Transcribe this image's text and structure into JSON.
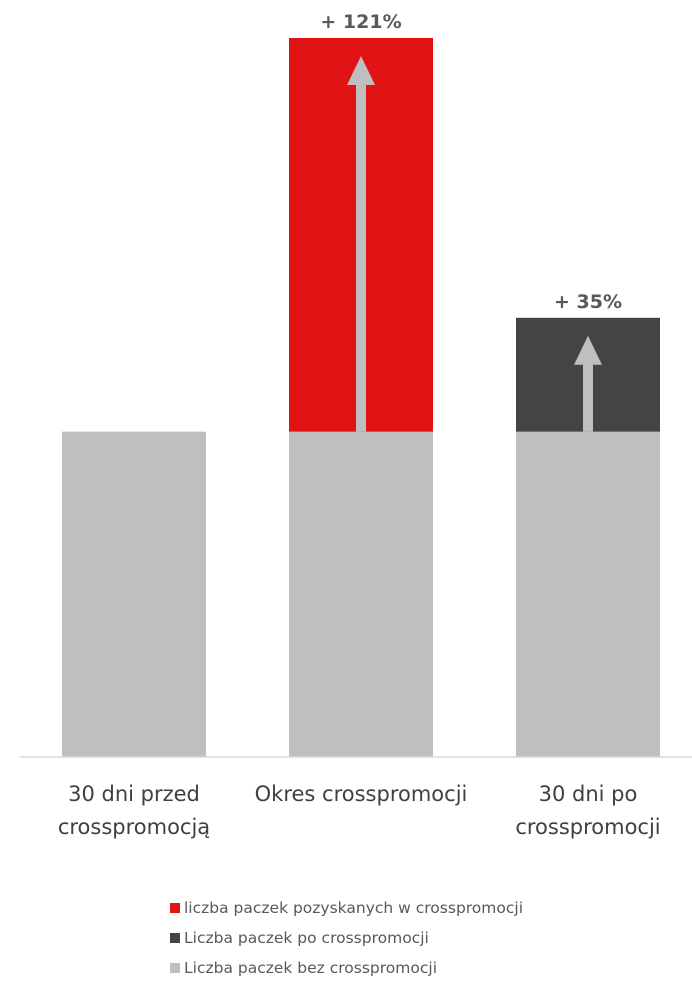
{
  "chart_data": {
    "type": "bar",
    "stacked": true,
    "categories": [
      "30 dni przed\ncrosspromocją",
      "Okres crosspromocji",
      "30 dni po\ncrosspromocji"
    ],
    "series": [
      {
        "name": "Liczba paczek bez crosspromocji",
        "color": "#BFBFBF",
        "values": [
          100,
          100,
          100
        ]
      },
      {
        "name": "liczba paczek pozyskanych w crosspromocji",
        "color": "#E01414",
        "values": [
          0,
          121,
          0
        ]
      },
      {
        "name": "Liczba paczek po crosspromocji",
        "color": "#444444",
        "values": [
          0,
          0,
          35
        ]
      }
    ],
    "annotations": [
      {
        "category_index": 1,
        "text": "+ 121%"
      },
      {
        "category_index": 2,
        "text": "+ 35%"
      }
    ],
    "legend_order": [
      1,
      2,
      0
    ],
    "legend_position": "bottom",
    "ylim": [
      0,
      221
    ],
    "grid": false,
    "arrow_color": "#BFBFBF"
  }
}
